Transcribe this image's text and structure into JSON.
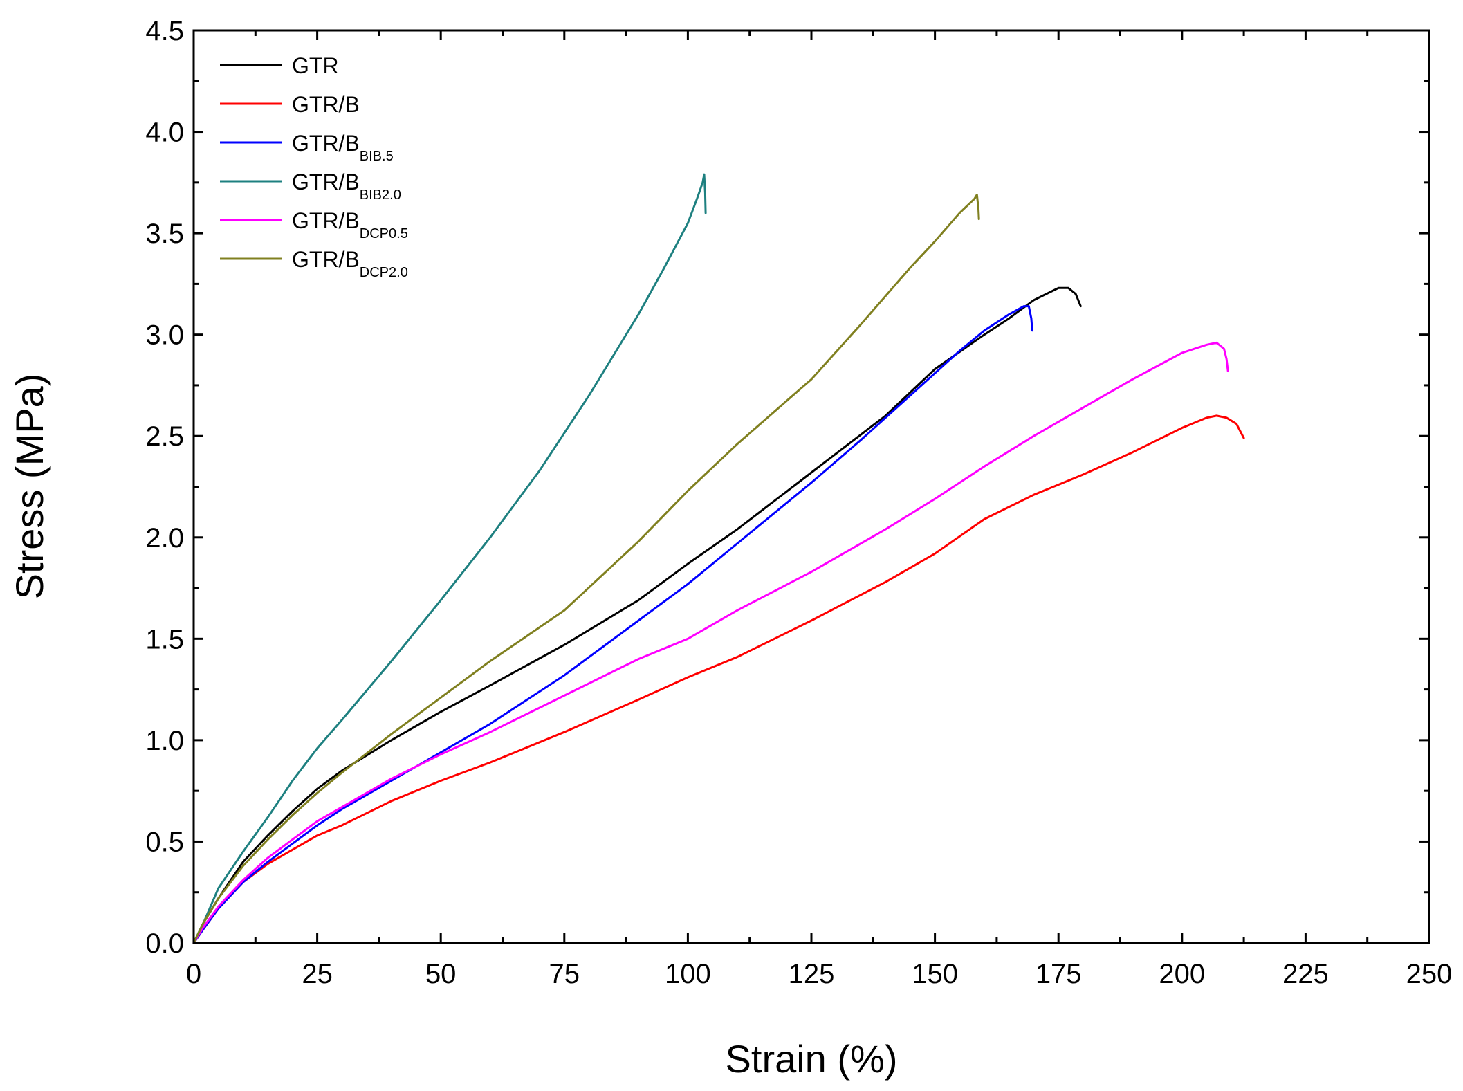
{
  "chart_data": {
    "type": "line",
    "title": "",
    "xlabel": "Strain (%)",
    "ylabel": "Stress (MPa)",
    "xlim": [
      0,
      250
    ],
    "ylim": [
      0,
      4.5
    ],
    "x_ticks": [
      0,
      25,
      50,
      75,
      100,
      125,
      150,
      175,
      200,
      225,
      250
    ],
    "x_tick_labels": [
      "0",
      "25",
      "50",
      "75",
      "100",
      "125",
      "150",
      "175",
      "200",
      "225",
      "250"
    ],
    "y_ticks": [
      0,
      0.5,
      1.0,
      1.5,
      2.0,
      2.5,
      3.0,
      3.5,
      4.0,
      4.5
    ],
    "y_tick_labels": [
      "0.0",
      "0.5",
      "1.0",
      "1.5",
      "2.0",
      "2.5",
      "3.0",
      "3.5",
      "4.0",
      "4.5"
    ],
    "grid": false,
    "legend_position": "top-left",
    "series": [
      {
        "name": "GTR",
        "label_main": "GTR",
        "label_sub": "",
        "color": "#000000",
        "points": [
          [
            0,
            0
          ],
          [
            2,
            0.1
          ],
          [
            5,
            0.22
          ],
          [
            10,
            0.4
          ],
          [
            15,
            0.53
          ],
          [
            20,
            0.65
          ],
          [
            25,
            0.76
          ],
          [
            30,
            0.85
          ],
          [
            40,
            1.0
          ],
          [
            50,
            1.14
          ],
          [
            60,
            1.27
          ],
          [
            75,
            1.47
          ],
          [
            90,
            1.69
          ],
          [
            100,
            1.87
          ],
          [
            110,
            2.04
          ],
          [
            125,
            2.32
          ],
          [
            140,
            2.6
          ],
          [
            150,
            2.83
          ],
          [
            160,
            3.0
          ],
          [
            165,
            3.08
          ],
          [
            170,
            3.17
          ],
          [
            175,
            3.23
          ],
          [
            177,
            3.23
          ],
          [
            178.5,
            3.2
          ],
          [
            179.5,
            3.14
          ]
        ]
      },
      {
        "name": "GTR/B",
        "label_main": "GTR/B",
        "label_sub": "",
        "color": "#ff0000",
        "points": [
          [
            0,
            0
          ],
          [
            2,
            0.07
          ],
          [
            5,
            0.17
          ],
          [
            10,
            0.3
          ],
          [
            15,
            0.39
          ],
          [
            20,
            0.46
          ],
          [
            25,
            0.53
          ],
          [
            30,
            0.58
          ],
          [
            40,
            0.7
          ],
          [
            50,
            0.8
          ],
          [
            60,
            0.89
          ],
          [
            75,
            1.04
          ],
          [
            90,
            1.2
          ],
          [
            100,
            1.31
          ],
          [
            110,
            1.41
          ],
          [
            125,
            1.59
          ],
          [
            140,
            1.78
          ],
          [
            150,
            1.92
          ],
          [
            160,
            2.09
          ],
          [
            170,
            2.21
          ],
          [
            180,
            2.31
          ],
          [
            190,
            2.42
          ],
          [
            200,
            2.54
          ],
          [
            205,
            2.59
          ],
          [
            207,
            2.6
          ],
          [
            209,
            2.59
          ],
          [
            211,
            2.56
          ],
          [
            212.5,
            2.49
          ]
        ]
      },
      {
        "name": "GTR/BBIB.5",
        "label_main": "GTR/B",
        "label_sub": "BIB.5",
        "color": "#0000ff",
        "points": [
          [
            0,
            0
          ],
          [
            2,
            0.07
          ],
          [
            5,
            0.17
          ],
          [
            10,
            0.3
          ],
          [
            15,
            0.4
          ],
          [
            20,
            0.49
          ],
          [
            25,
            0.58
          ],
          [
            30,
            0.66
          ],
          [
            40,
            0.8
          ],
          [
            50,
            0.94
          ],
          [
            60,
            1.08
          ],
          [
            75,
            1.32
          ],
          [
            90,
            1.59
          ],
          [
            100,
            1.77
          ],
          [
            110,
            1.97
          ],
          [
            125,
            2.27
          ],
          [
            135,
            2.48
          ],
          [
            145,
            2.7
          ],
          [
            155,
            2.92
          ],
          [
            160,
            3.02
          ],
          [
            165,
            3.1
          ],
          [
            168,
            3.14
          ],
          [
            169,
            3.14
          ],
          [
            169.5,
            3.08
          ],
          [
            169.7,
            3.02
          ]
        ]
      },
      {
        "name": "GTR/BBIB2.0",
        "label_main": "GTR/B",
        "label_sub": "BIB2.0",
        "color": "#1e8080",
        "points": [
          [
            0,
            0
          ],
          [
            2,
            0.1
          ],
          [
            5,
            0.27
          ],
          [
            10,
            0.45
          ],
          [
            15,
            0.62
          ],
          [
            20,
            0.8
          ],
          [
            25,
            0.96
          ],
          [
            30,
            1.1
          ],
          [
            40,
            1.39
          ],
          [
            50,
            1.69
          ],
          [
            60,
            2.0
          ],
          [
            70,
            2.33
          ],
          [
            80,
            2.7
          ],
          [
            90,
            3.1
          ],
          [
            95,
            3.32
          ],
          [
            100,
            3.55
          ],
          [
            102,
            3.68
          ],
          [
            103,
            3.75
          ],
          [
            103.3,
            3.79
          ],
          [
            103.5,
            3.7
          ],
          [
            103.6,
            3.6
          ]
        ]
      },
      {
        "name": "GTR/BDCP0.5",
        "label_main": "GTR/B",
        "label_sub": "DCP0.5",
        "color": "#ff00ff",
        "points": [
          [
            0,
            0
          ],
          [
            2,
            0.08
          ],
          [
            5,
            0.18
          ],
          [
            10,
            0.31
          ],
          [
            15,
            0.42
          ],
          [
            20,
            0.51
          ],
          [
            25,
            0.6
          ],
          [
            30,
            0.67
          ],
          [
            40,
            0.81
          ],
          [
            50,
            0.93
          ],
          [
            60,
            1.04
          ],
          [
            75,
            1.22
          ],
          [
            90,
            1.4
          ],
          [
            100,
            1.5
          ],
          [
            110,
            1.64
          ],
          [
            125,
            1.83
          ],
          [
            140,
            2.04
          ],
          [
            150,
            2.19
          ],
          [
            160,
            2.35
          ],
          [
            170,
            2.5
          ],
          [
            180,
            2.64
          ],
          [
            190,
            2.78
          ],
          [
            200,
            2.91
          ],
          [
            205,
            2.95
          ],
          [
            207,
            2.96
          ],
          [
            208.5,
            2.93
          ],
          [
            209,
            2.88
          ],
          [
            209.3,
            2.82
          ]
        ]
      },
      {
        "name": "GTR/BDCP2.0",
        "label_main": "GTR/B",
        "label_sub": "DCP2.0",
        "color": "#808020",
        "points": [
          [
            0,
            0
          ],
          [
            2,
            0.1
          ],
          [
            5,
            0.22
          ],
          [
            10,
            0.38
          ],
          [
            15,
            0.51
          ],
          [
            20,
            0.63
          ],
          [
            25,
            0.74
          ],
          [
            30,
            0.84
          ],
          [
            40,
            1.03
          ],
          [
            50,
            1.21
          ],
          [
            60,
            1.39
          ],
          [
            75,
            1.64
          ],
          [
            90,
            1.98
          ],
          [
            100,
            2.23
          ],
          [
            110,
            2.46
          ],
          [
            125,
            2.78
          ],
          [
            135,
            3.05
          ],
          [
            145,
            3.33
          ],
          [
            150,
            3.46
          ],
          [
            155,
            3.6
          ],
          [
            158,
            3.67
          ],
          [
            158.5,
            3.69
          ],
          [
            158.8,
            3.62
          ],
          [
            158.9,
            3.57
          ]
        ]
      }
    ]
  }
}
